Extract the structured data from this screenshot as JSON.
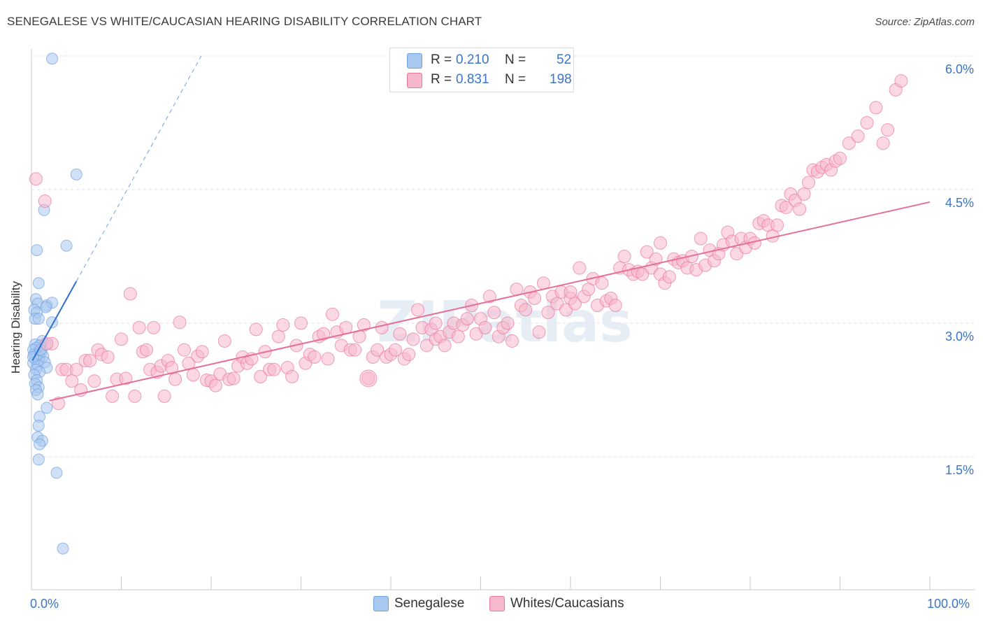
{
  "header": {
    "title": "SENEGALESE VS WHITE/CAUCASIAN HEARING DISABILITY CORRELATION CHART",
    "source": "Source: ZipAtlas.com"
  },
  "legend": {
    "r_label": "R =",
    "n_label": "N =",
    "rows": [
      {
        "r": "0.210",
        "n": "52",
        "color": "#a9c8f0"
      },
      {
        "r": "0.831",
        "n": "198",
        "color": "#f7b8cc"
      }
    ]
  },
  "bottom_legend": [
    {
      "label": "Senegalese",
      "color": "#a9c8f0"
    },
    {
      "label": "Whites/Caucasians",
      "color": "#f7b8cc"
    }
  ],
  "watermark": "ZIPatlas",
  "chart_data": {
    "type": "scatter",
    "title": "SENEGALESE VS WHITE/CAUCASIAN HEARING DISABILITY CORRELATION CHART",
    "xlabel": "",
    "ylabel": "Hearing Disability",
    "xlim": [
      0,
      100
    ],
    "ylim": [
      0,
      6.25
    ],
    "x_tick_labels": [
      "0.0%",
      "100.0%"
    ],
    "y_ticks": [
      1.5,
      3.0,
      4.5,
      6.0
    ],
    "y_tick_labels": [
      "1.5%",
      "3.0%",
      "4.5%",
      "6.0%"
    ],
    "grid": true,
    "series": [
      {
        "name": "Senegalese",
        "color": "#6fa0e0",
        "fill": "#a9c8f0",
        "R": 0.21,
        "N": 52,
        "trend": {
          "x": [
            0.1,
            5.0
          ],
          "y": [
            2.58,
            3.47
          ],
          "dashed_to": [
            18.9,
            6.0
          ]
        },
        "points": [
          [
            2.3,
            5.97
          ],
          [
            5.0,
            4.67
          ],
          [
            1.4,
            4.27
          ],
          [
            3.9,
            3.87
          ],
          [
            0.6,
            3.82
          ],
          [
            0.8,
            3.45
          ],
          [
            0.5,
            3.27
          ],
          [
            0.7,
            3.22
          ],
          [
            1.7,
            3.2
          ],
          [
            2.3,
            3.23
          ],
          [
            1.6,
            3.18
          ],
          [
            0.3,
            3.15
          ],
          [
            0.6,
            3.12
          ],
          [
            0.4,
            3.05
          ],
          [
            0.8,
            3.05
          ],
          [
            2.3,
            3.01
          ],
          [
            1.2,
            2.8
          ],
          [
            0.4,
            2.76
          ],
          [
            1.6,
            2.76
          ],
          [
            0.9,
            2.75
          ],
          [
            0.5,
            2.72
          ],
          [
            0.2,
            2.7
          ],
          [
            1.1,
            2.68
          ],
          [
            0.3,
            2.65
          ],
          [
            0.6,
            2.64
          ],
          [
            0.9,
            2.62
          ],
          [
            1.3,
            2.63
          ],
          [
            0.4,
            2.6
          ],
          [
            0.8,
            2.58
          ],
          [
            1.5,
            2.56
          ],
          [
            0.2,
            2.55
          ],
          [
            0.7,
            2.53
          ],
          [
            1.7,
            2.5
          ],
          [
            0.5,
            2.48
          ],
          [
            0.9,
            2.45
          ],
          [
            0.3,
            2.42
          ],
          [
            0.6,
            2.36
          ],
          [
            0.4,
            2.32
          ],
          [
            0.8,
            2.28
          ],
          [
            0.5,
            2.25
          ],
          [
            0.7,
            2.2
          ],
          [
            1.7,
            2.05
          ],
          [
            0.9,
            1.95
          ],
          [
            0.8,
            1.85
          ],
          [
            0.7,
            1.72
          ],
          [
            1.2,
            1.68
          ],
          [
            0.9,
            1.64
          ],
          [
            0.8,
            1.47
          ],
          [
            2.8,
            1.32
          ],
          [
            3.5,
            0.47
          ],
          [
            0.2,
            2.62
          ],
          [
            1.0,
            2.7
          ]
        ]
      },
      {
        "name": "Whites/Caucasians",
        "color": "#e9769c",
        "fill": "#f7b8cc",
        "R": 0.831,
        "N": 198,
        "trend": {
          "x": [
            2.0,
            100.0
          ],
          "y": [
            2.13,
            4.36
          ]
        },
        "points": [
          [
            0.5,
            4.62
          ],
          [
            1.5,
            4.37
          ],
          [
            2.3,
            2.77
          ],
          [
            1.7,
            2.77
          ],
          [
            3.0,
            2.1
          ],
          [
            3.4,
            2.48
          ],
          [
            3.9,
            2.48
          ],
          [
            4.5,
            2.35
          ],
          [
            5.0,
            2.48
          ],
          [
            5.5,
            2.25
          ],
          [
            6.0,
            2.58
          ],
          [
            6.5,
            2.58
          ],
          [
            7.0,
            2.35
          ],
          [
            7.4,
            2.7
          ],
          [
            7.8,
            2.65
          ],
          [
            8.5,
            2.62
          ],
          [
            9.0,
            2.18
          ],
          [
            9.5,
            2.37
          ],
          [
            10.0,
            2.82
          ],
          [
            10.5,
            2.38
          ],
          [
            11.0,
            3.33
          ],
          [
            11.5,
            2.18
          ],
          [
            12.0,
            2.95
          ],
          [
            12.4,
            2.68
          ],
          [
            12.8,
            2.7
          ],
          [
            13.2,
            2.48
          ],
          [
            13.6,
            2.95
          ],
          [
            14.0,
            2.45
          ],
          [
            14.4,
            2.52
          ],
          [
            14.8,
            2.18
          ],
          [
            15.2,
            2.58
          ],
          [
            15.6,
            2.5
          ],
          [
            16.0,
            2.37
          ],
          [
            16.5,
            3.01
          ],
          [
            17.0,
            2.7
          ],
          [
            17.5,
            2.55
          ],
          [
            18.0,
            2.42
          ],
          [
            18.5,
            2.63
          ],
          [
            19.0,
            2.68
          ],
          [
            19.5,
            2.36
          ],
          [
            20.0,
            2.35
          ],
          [
            20.5,
            2.3
          ],
          [
            21.0,
            2.43
          ],
          [
            21.5,
            2.8
          ],
          [
            22.0,
            2.37
          ],
          [
            22.5,
            2.38
          ],
          [
            23.0,
            2.52
          ],
          [
            23.5,
            2.62
          ],
          [
            24.0,
            2.55
          ],
          [
            24.5,
            2.6
          ],
          [
            25.0,
            2.93
          ],
          [
            25.5,
            2.4
          ],
          [
            26.0,
            2.68
          ],
          [
            26.5,
            2.48
          ],
          [
            27.0,
            2.48
          ],
          [
            27.5,
            2.85
          ],
          [
            28.0,
            2.98
          ],
          [
            28.5,
            2.5
          ],
          [
            29.0,
            2.4
          ],
          [
            29.5,
            2.75
          ],
          [
            30.0,
            3.0
          ],
          [
            30.5,
            2.55
          ],
          [
            31.0,
            2.65
          ],
          [
            31.5,
            2.62
          ],
          [
            32.0,
            2.85
          ],
          [
            32.5,
            2.88
          ],
          [
            33.0,
            2.6
          ],
          [
            33.5,
            3.1
          ],
          [
            34.0,
            2.9
          ],
          [
            34.5,
            2.75
          ],
          [
            35.0,
            2.95
          ],
          [
            35.5,
            2.7
          ],
          [
            36.0,
            2.7
          ],
          [
            36.5,
            2.85
          ],
          [
            37.0,
            2.98
          ],
          [
            37.5,
            2.38
          ],
          [
            38.0,
            2.62
          ],
          [
            38.5,
            2.7
          ],
          [
            39.0,
            2.95
          ],
          [
            39.5,
            2.62
          ],
          [
            40.0,
            2.65
          ],
          [
            40.5,
            2.7
          ],
          [
            41.0,
            2.88
          ],
          [
            41.5,
            2.6
          ],
          [
            42.0,
            2.65
          ],
          [
            42.5,
            2.82
          ],
          [
            43.0,
            3.15
          ],
          [
            43.5,
            2.95
          ],
          [
            44.0,
            2.75
          ],
          [
            44.5,
            2.93
          ],
          [
            45.0,
            2.82
          ],
          [
            45.5,
            2.85
          ],
          [
            46.0,
            2.75
          ],
          [
            46.5,
            2.9
          ],
          [
            47.0,
            3.0
          ],
          [
            47.5,
            2.85
          ],
          [
            48.0,
            2.98
          ],
          [
            48.5,
            3.05
          ],
          [
            49.0,
            3.2
          ],
          [
            49.5,
            2.88
          ],
          [
            50.0,
            3.05
          ],
          [
            50.5,
            2.95
          ],
          [
            51.0,
            3.3
          ],
          [
            51.5,
            3.12
          ],
          [
            52.0,
            2.85
          ],
          [
            52.5,
            2.95
          ],
          [
            53.0,
            3.0
          ],
          [
            53.5,
            2.8
          ],
          [
            54.0,
            3.38
          ],
          [
            54.5,
            3.2
          ],
          [
            55.0,
            3.15
          ],
          [
            55.5,
            3.35
          ],
          [
            56.0,
            3.28
          ],
          [
            56.5,
            2.9
          ],
          [
            57.0,
            3.45
          ],
          [
            57.5,
            3.12
          ],
          [
            58.0,
            3.3
          ],
          [
            58.5,
            3.22
          ],
          [
            59.0,
            3.35
          ],
          [
            59.5,
            3.15
          ],
          [
            60.0,
            3.28
          ],
          [
            60.5,
            3.22
          ],
          [
            61.0,
            3.62
          ],
          [
            61.5,
            3.3
          ],
          [
            62.0,
            3.38
          ],
          [
            62.5,
            3.5
          ],
          [
            63.0,
            3.2
          ],
          [
            63.5,
            3.45
          ],
          [
            64.0,
            3.25
          ],
          [
            64.5,
            3.28
          ],
          [
            65.0,
            3.2
          ],
          [
            65.5,
            3.62
          ],
          [
            66.0,
            3.75
          ],
          [
            66.5,
            3.6
          ],
          [
            67.0,
            3.55
          ],
          [
            67.5,
            3.58
          ],
          [
            68.0,
            3.55
          ],
          [
            68.5,
            3.8
          ],
          [
            69.0,
            3.62
          ],
          [
            69.5,
            3.72
          ],
          [
            70.0,
            3.55
          ],
          [
            70.5,
            3.45
          ],
          [
            71.0,
            3.52
          ],
          [
            71.5,
            3.72
          ],
          [
            72.0,
            3.68
          ],
          [
            72.5,
            3.7
          ],
          [
            73.0,
            3.62
          ],
          [
            73.5,
            3.75
          ],
          [
            74.0,
            3.6
          ],
          [
            74.5,
            3.95
          ],
          [
            75.0,
            3.65
          ],
          [
            75.5,
            3.82
          ],
          [
            76.0,
            3.7
          ],
          [
            76.5,
            3.78
          ],
          [
            77.0,
            3.88
          ],
          [
            77.5,
            4.02
          ],
          [
            78.0,
            3.92
          ],
          [
            78.5,
            3.78
          ],
          [
            79.0,
            3.95
          ],
          [
            79.5,
            3.85
          ],
          [
            80.0,
            3.95
          ],
          [
            80.5,
            3.9
          ],
          [
            81.0,
            4.12
          ],
          [
            81.5,
            4.15
          ],
          [
            82.0,
            4.1
          ],
          [
            82.5,
            3.98
          ],
          [
            83.0,
            4.1
          ],
          [
            83.5,
            4.32
          ],
          [
            84.0,
            4.3
          ],
          [
            84.5,
            4.45
          ],
          [
            85.0,
            4.38
          ],
          [
            85.5,
            4.28
          ],
          [
            86.0,
            4.45
          ],
          [
            86.5,
            4.58
          ],
          [
            87.0,
            4.72
          ],
          [
            87.5,
            4.7
          ],
          [
            88.0,
            4.75
          ],
          [
            88.5,
            4.78
          ],
          [
            89.0,
            4.72
          ],
          [
            89.5,
            4.82
          ],
          [
            90.0,
            4.85
          ],
          [
            91.0,
            5.02
          ],
          [
            92.0,
            5.1
          ],
          [
            93.0,
            5.25
          ],
          [
            94.0,
            5.42
          ],
          [
            94.8,
            5.02
          ],
          [
            95.3,
            5.17
          ],
          [
            96.2,
            5.62
          ],
          [
            96.8,
            5.72
          ],
          [
            45.0,
            3.0
          ],
          [
            60.0,
            3.35
          ],
          [
            70.0,
            3.9
          ]
        ]
      }
    ]
  }
}
